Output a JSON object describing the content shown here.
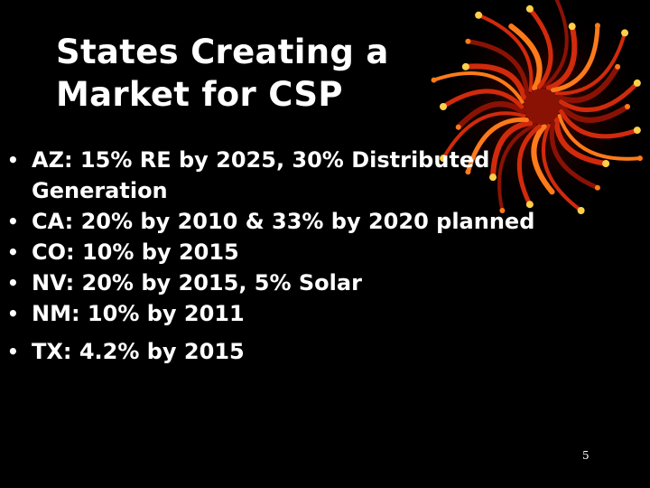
{
  "slide": {
    "title_line1": "States Creating a",
    "title_line2": "Market for CSP",
    "bullets": [
      "AZ:  15% RE by 2025, 30% Distributed",
      "Generation",
      "CA:  20% by 2010 & 33% by 2020 planned",
      "CO:  10% by 2015",
      "NV:  20% by 2015, 5% Solar",
      "NM:  10% by 2011",
      "TX:  4.2% by 2015"
    ],
    "bullet_glyph": "•",
    "page_number": "5"
  },
  "decoration": {
    "icon": "sunburst-clipart",
    "colors": {
      "background": "#000000",
      "text": "#ffffff",
      "ray_dark": "#8a1205",
      "ray_mid": "#d12a0c",
      "ray_bright": "#ff7a1a",
      "ray_tip": "#ffd04a"
    }
  }
}
